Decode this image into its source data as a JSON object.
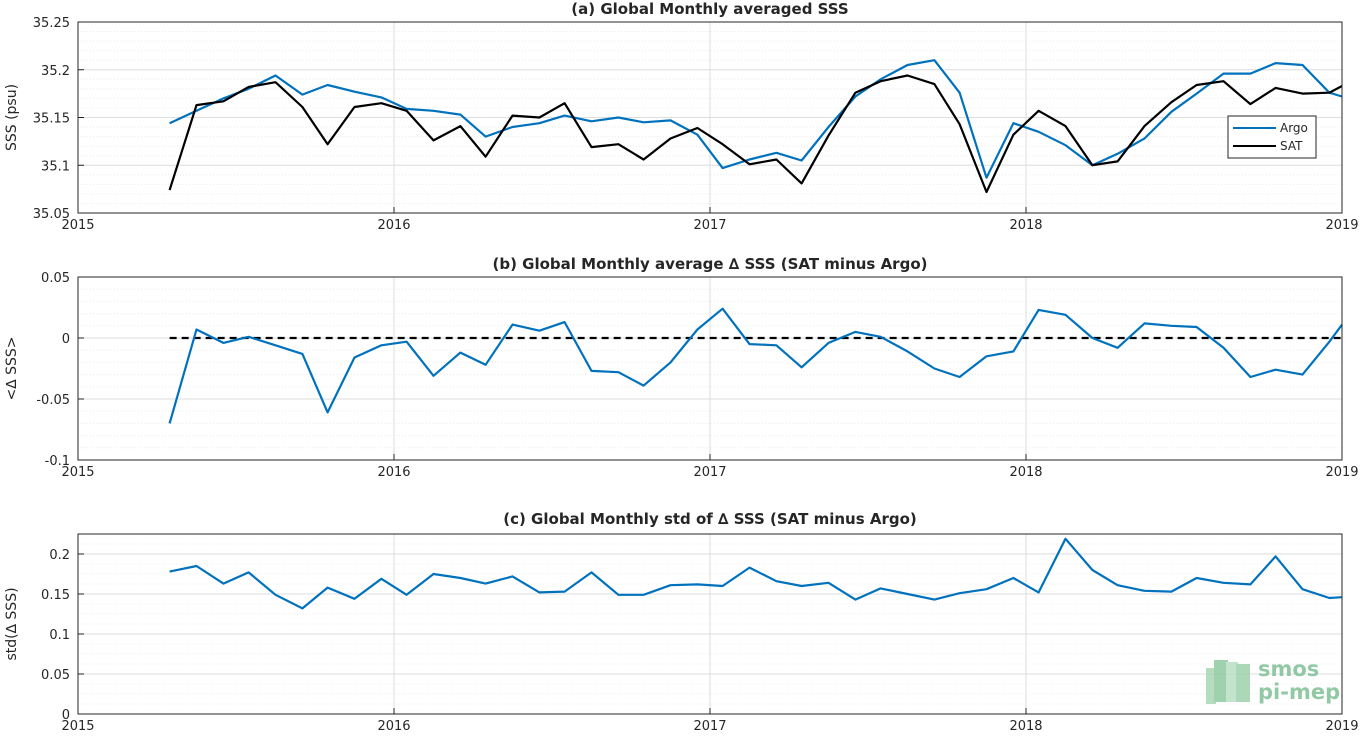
{
  "chart_data": [
    {
      "id": "a",
      "type": "line",
      "title": "(a) Global Monthly averaged SSS",
      "ylabel": "SSS (psu)",
      "xlim": [
        2015,
        2019
      ],
      "ylim": [
        35.05,
        35.25
      ],
      "xticks": [
        "2015",
        "2016",
        "2017",
        "2018",
        "2019"
      ],
      "yticks": [
        "35.05",
        "35.1",
        "35.15",
        "35.2",
        "35.25"
      ],
      "grid": true,
      "legend": "right",
      "x": [
        2015.29,
        2015.375,
        2015.46,
        2015.54,
        2015.625,
        2015.71,
        2015.79,
        2015.875,
        2015.96,
        2016.04,
        2016.125,
        2016.21,
        2016.29,
        2016.375,
        2016.46,
        2016.54,
        2016.625,
        2016.71,
        2016.79,
        2016.875,
        2016.96,
        2017.04,
        2017.125,
        2017.21,
        2017.29,
        2017.375,
        2017.46,
        2017.54,
        2017.625,
        2017.71,
        2017.79,
        2017.875,
        2017.96,
        2018.04,
        2018.125,
        2018.21,
        2018.29,
        2018.375,
        2018.46,
        2018.54,
        2018.625,
        2018.71,
        2018.79,
        2018.875,
        2018.96,
        2019.0
      ],
      "series": [
        {
          "name": "Argo",
          "color": "#0072bd",
          "values": [
            35.144,
            35.157,
            35.17,
            35.18,
            35.194,
            35.174,
            35.184,
            35.177,
            35.171,
            35.159,
            35.157,
            35.153,
            35.13,
            35.14,
            35.144,
            35.152,
            35.146,
            35.15,
            35.145,
            35.147,
            35.132,
            35.097,
            35.106,
            35.113,
            35.105,
            35.14,
            35.172,
            35.19,
            35.205,
            35.21,
            35.176,
            35.087,
            35.144,
            35.135,
            35.121,
            35.1,
            35.112,
            35.128,
            35.156,
            35.175,
            35.196,
            35.196,
            35.207,
            35.205,
            35.176,
            35.172
          ]
        },
        {
          "name": "SAT",
          "color": "#000000",
          "values": [
            35.074,
            35.163,
            35.167,
            35.182,
            35.187,
            35.161,
            35.122,
            35.161,
            35.165,
            35.157,
            35.126,
            35.141,
            35.109,
            35.152,
            35.15,
            35.165,
            35.119,
            35.122,
            35.106,
            35.128,
            35.139,
            35.122,
            35.101,
            35.106,
            35.081,
            35.131,
            35.176,
            35.188,
            35.194,
            35.185,
            35.143,
            35.072,
            35.132,
            35.157,
            35.141,
            35.1,
            35.104,
            35.141,
            35.166,
            35.184,
            35.188,
            35.164,
            35.181,
            35.175,
            35.176,
            35.183
          ]
        }
      ]
    },
    {
      "id": "b",
      "type": "line",
      "title": "(b) Global Monthly average ∆ SSS (SAT minus Argo)",
      "ylabel": "<∆ SSS>",
      "xlim": [
        2015,
        2019
      ],
      "ylim": [
        -0.1,
        0.05
      ],
      "xticks": [
        "2015",
        "2016",
        "2017",
        "2018",
        "2019"
      ],
      "yticks": [
        "-0.1",
        "-0.05",
        "0",
        "0.05"
      ],
      "grid": true,
      "reference_line": 0,
      "x": [
        2015.29,
        2015.375,
        2015.46,
        2015.54,
        2015.625,
        2015.71,
        2015.79,
        2015.875,
        2015.96,
        2016.04,
        2016.125,
        2016.21,
        2016.29,
        2016.375,
        2016.46,
        2016.54,
        2016.625,
        2016.71,
        2016.79,
        2016.875,
        2016.96,
        2017.04,
        2017.125,
        2017.21,
        2017.29,
        2017.375,
        2017.46,
        2017.54,
        2017.625,
        2017.71,
        2017.79,
        2017.875,
        2017.96,
        2018.04,
        2018.125,
        2018.21,
        2018.29,
        2018.375,
        2018.46,
        2018.54,
        2018.625,
        2018.71,
        2018.79,
        2018.875,
        2018.96,
        2019.0
      ],
      "series": [
        {
          "color": "#0072bd",
          "values": [
            -0.07,
            0.007,
            -0.004,
            0.001,
            -0.006,
            -0.013,
            -0.061,
            -0.016,
            -0.006,
            -0.003,
            -0.031,
            -0.012,
            -0.022,
            0.011,
            0.006,
            0.013,
            -0.027,
            -0.028,
            -0.039,
            -0.02,
            0.007,
            0.024,
            -0.005,
            -0.006,
            -0.024,
            -0.004,
            0.005,
            0.001,
            -0.011,
            -0.025,
            -0.032,
            -0.015,
            -0.011,
            0.023,
            0.019,
            0.0,
            -0.008,
            0.012,
            0.01,
            0.009,
            -0.008,
            -0.032,
            -0.026,
            -0.03,
            -0.003,
            0.011
          ]
        }
      ]
    },
    {
      "id": "c",
      "type": "line",
      "title": "(c) Global Monthly std of ∆ SSS (SAT minus Argo)",
      "ylabel": "std(∆ SSS)",
      "xlim": [
        2015,
        2019
      ],
      "ylim": [
        0,
        0.225
      ],
      "xticks": [
        "2015",
        "2016",
        "2017",
        "2018",
        "2019"
      ],
      "yticks": [
        "0",
        "0.05",
        "0.1",
        "0.15",
        "0.2"
      ],
      "grid": true,
      "x": [
        2015.29,
        2015.375,
        2015.46,
        2015.54,
        2015.625,
        2015.71,
        2015.79,
        2015.875,
        2015.96,
        2016.04,
        2016.125,
        2016.21,
        2016.29,
        2016.375,
        2016.46,
        2016.54,
        2016.625,
        2016.71,
        2016.79,
        2016.875,
        2016.96,
        2017.04,
        2017.125,
        2017.21,
        2017.29,
        2017.375,
        2017.46,
        2017.54,
        2017.625,
        2017.71,
        2017.79,
        2017.875,
        2017.96,
        2018.04,
        2018.125,
        2018.21,
        2018.29,
        2018.375,
        2018.46,
        2018.54,
        2018.625,
        2018.71,
        2018.79,
        2018.875,
        2018.96,
        2019.0
      ],
      "series": [
        {
          "color": "#0072bd",
          "values": [
            0.178,
            0.185,
            0.163,
            0.177,
            0.149,
            0.132,
            0.158,
            0.144,
            0.169,
            0.149,
            0.175,
            0.17,
            0.163,
            0.172,
            0.152,
            0.153,
            0.177,
            0.149,
            0.149,
            0.161,
            0.162,
            0.16,
            0.183,
            0.166,
            0.16,
            0.164,
            0.143,
            0.157,
            0.15,
            0.143,
            0.151,
            0.156,
            0.17,
            0.152,
            0.219,
            0.18,
            0.161,
            0.154,
            0.153,
            0.17,
            0.164,
            0.162,
            0.197,
            0.156,
            0.145,
            0.146
          ]
        }
      ]
    }
  ],
  "logo": {
    "line1": "smos",
    "line2": "pi-mep"
  }
}
